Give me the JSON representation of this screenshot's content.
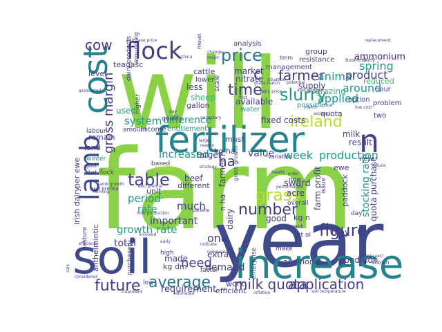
{
  "palette": {
    "green": "#8ad147",
    "lime": "#b5de2b",
    "teal": "#1f988b",
    "deep_teal": "#25838e",
    "blue": "#3e4a89",
    "navy": "#433e85",
    "purple": "#482475",
    "mint": "#35b779",
    "light_mint": "#6ece58",
    "slate": "#2c728e"
  },
  "words": [
    {
      "text": "will",
      "color": "green"
    },
    {
      "text": "farm",
      "color": "green"
    },
    {
      "text": "year",
      "color": "blue"
    },
    {
      "text": "soil",
      "color": "blue"
    },
    {
      "text": "increase",
      "color": "deep_teal"
    },
    {
      "text": "fertilizer",
      "color": "deep_teal"
    },
    {
      "text": "cost",
      "color": "deep_teal"
    },
    {
      "text": "lamb",
      "color": "blue"
    },
    {
      "text": "flock",
      "color": "navy"
    },
    {
      "text": "price",
      "color": "slate"
    },
    {
      "text": "n",
      "color": "navy"
    },
    {
      "text": "average",
      "color": "slate"
    },
    {
      "text": "future",
      "color": "navy"
    },
    {
      "text": "figure",
      "color": "navy"
    },
    {
      "text": "milk quota",
      "color": "navy"
    },
    {
      "text": "application",
      "color": "navy"
    },
    {
      "text": "ireland",
      "color": "lime"
    },
    {
      "text": "grass",
      "color": "lime"
    },
    {
      "text": "slurry",
      "color": "teal"
    },
    {
      "text": "time",
      "color": "navy"
    },
    {
      "text": "farmer",
      "color": "navy"
    },
    {
      "text": "number",
      "color": "navy"
    },
    {
      "text": "table",
      "color": "navy"
    },
    {
      "text": "gross margin",
      "color": "navy"
    },
    {
      "text": "cow",
      "color": "navy"
    },
    {
      "text": "ha",
      "color": "navy"
    },
    {
      "text": "c",
      "color": "navy"
    },
    {
      "text": "need",
      "color": "navy"
    },
    {
      "text": "demand",
      "color": "navy"
    },
    {
      "text": "week",
      "color": "teal"
    },
    {
      "text": "production",
      "color": "teal"
    },
    {
      "text": "increased",
      "color": "teal"
    },
    {
      "text": "animal",
      "color": "teal"
    },
    {
      "text": "applied",
      "color": "teal"
    },
    {
      "text": "around",
      "color": "teal"
    },
    {
      "text": "spring",
      "color": "teal"
    },
    {
      "text": "product",
      "color": "navy"
    },
    {
      "text": "value",
      "color": "navy"
    },
    {
      "text": "system",
      "color": "teal"
    },
    {
      "text": "difference",
      "color": "teal"
    },
    {
      "text": "period",
      "color": "teal"
    },
    {
      "text": "rate",
      "color": "teal"
    },
    {
      "text": "growth rate",
      "color": "teal"
    },
    {
      "text": "total",
      "color": "navy"
    },
    {
      "text": "one",
      "color": "navy"
    },
    {
      "text": "much",
      "color": "navy"
    },
    {
      "text": "important",
      "color": "navy"
    },
    {
      "text": "requirement",
      "color": "navy"
    },
    {
      "text": "ammonium",
      "color": "purple"
    },
    {
      "text": "supply",
      "color": "navy"
    },
    {
      "text": "grazing",
      "color": "mint"
    },
    {
      "text": "reduced",
      "color": "mint"
    },
    {
      "text": "market",
      "color": "navy"
    },
    {
      "text": "nitrate",
      "color": "navy"
    },
    {
      "text": "less",
      "color": "navy"
    },
    {
      "text": "cattle",
      "color": "navy"
    },
    {
      "text": "sheep",
      "color": "mint"
    },
    {
      "text": "gallon",
      "color": "navy"
    },
    {
      "text": "available",
      "color": "navy"
    },
    {
      "text": "used",
      "color": "teal"
    },
    {
      "text": "fixed costs",
      "color": "navy"
    },
    {
      "text": "quota",
      "color": "navy"
    },
    {
      "text": "milk",
      "color": "navy"
    },
    {
      "text": "result",
      "color": "navy"
    },
    {
      "text": "kg ha",
      "color": "navy"
    },
    {
      "text": "target",
      "color": "navy"
    },
    {
      "text": "must",
      "color": "navy"
    },
    {
      "text": "sward",
      "color": "navy"
    },
    {
      "text": "acre",
      "color": "navy"
    },
    {
      "text": "farm profit",
      "color": "navy"
    },
    {
      "text": "stocking rate",
      "color": "teal"
    },
    {
      "text": "quota purchase",
      "color": "navy"
    },
    {
      "text": "paddock",
      "color": "navy"
    },
    {
      "text": "good",
      "color": "navy"
    },
    {
      "text": "kg n",
      "color": "navy"
    },
    {
      "text": "may",
      "color": "navy"
    },
    {
      "text": "condition",
      "color": "navy"
    },
    {
      "text": "additional",
      "color": "navy"
    },
    {
      "text": "extra",
      "color": "navy"
    },
    {
      "text": "made",
      "color": "navy"
    },
    {
      "text": "kg dm",
      "color": "navy"
    },
    {
      "text": "work",
      "color": "navy"
    },
    {
      "text": "efficient",
      "color": "navy"
    },
    {
      "text": "dairy",
      "color": "navy"
    },
    {
      "text": "farmer n",
      "color": "navy"
    },
    {
      "text": "n ha",
      "color": "navy"
    },
    {
      "text": "beef",
      "color": "navy"
    },
    {
      "text": "different",
      "color": "navy"
    },
    {
      "text": "unit",
      "color": "navy"
    },
    {
      "text": "anthelmintic",
      "color": "navy"
    },
    {
      "text": "irish dairy",
      "color": "navy"
    },
    {
      "text": "per ewe",
      "color": "navy"
    },
    {
      "text": "land",
      "color": "navy"
    },
    {
      "text": "remain",
      "color": "navy"
    },
    {
      "text": "level",
      "color": "navy"
    },
    {
      "text": "teagasc",
      "color": "navy"
    },
    {
      "text": "income",
      "color": "navy"
    },
    {
      "text": "entitlement",
      "color": "teal"
    },
    {
      "text": "group",
      "color": "navy"
    },
    {
      "text": "resistance",
      "color": "navy"
    },
    {
      "text": "management",
      "color": "navy"
    },
    {
      "text": "analysis",
      "color": "navy"
    },
    {
      "text": "possible",
      "color": "teal"
    },
    {
      "text": "problem",
      "color": "navy"
    },
    {
      "text": "hour",
      "color": "navy"
    },
    {
      "text": "option",
      "color": "navy"
    },
    {
      "text": "two",
      "color": "navy"
    },
    {
      "text": "new",
      "color": "navy"
    },
    {
      "text": "ewe",
      "color": "navy"
    },
    {
      "text": "dairy products",
      "color": "navy"
    },
    {
      "text": "around kg",
      "color": "navy"
    },
    {
      "text": "higher",
      "color": "navy"
    },
    {
      "text": "quality",
      "color": "navy"
    },
    {
      "text": "amount",
      "color": "navy"
    },
    {
      "text": "labour",
      "color": "navy"
    },
    {
      "text": "lower",
      "color": "navy"
    },
    {
      "text": "scale",
      "color": "navy"
    },
    {
      "text": "water",
      "color": "teal"
    },
    {
      "text": "winter",
      "color": "teal"
    },
    {
      "text": "tet flock",
      "color": "navy"
    },
    {
      "text": "month",
      "color": "lime"
    },
    {
      "text": "based",
      "color": "navy"
    },
    {
      "text": "enterprise",
      "color": "navy"
    },
    {
      "text": "high",
      "color": "navy"
    },
    {
      "text": "factor",
      "color": "navy"
    },
    {
      "text": "current",
      "color": "navy"
    },
    {
      "text": "shown",
      "color": "navy"
    },
    {
      "text": "day",
      "color": "navy"
    },
    {
      "text": "make",
      "color": "navy"
    },
    {
      "text": "issue",
      "color": "navy"
    },
    {
      "text": "now",
      "color": "navy"
    },
    {
      "text": "overall",
      "color": "navy"
    },
    {
      "text": "pasture",
      "color": "navy"
    },
    {
      "text": "purchased",
      "color": "navy"
    },
    {
      "text": "low",
      "color": "navy"
    },
    {
      "text": "grass growth",
      "color": "navy"
    },
    {
      "text": "lamb growth",
      "color": "navy"
    },
    {
      "text": "business",
      "color": "navy"
    },
    {
      "text": "likely",
      "color": "navy"
    },
    {
      "text": "mean",
      "color": "navy"
    },
    {
      "text": "average cost",
      "color": "navy"
    },
    {
      "text": "low cost",
      "color": "navy"
    },
    {
      "text": "march",
      "color": "navy"
    },
    {
      "text": "due",
      "color": "navy"
    },
    {
      "text": "variation",
      "color": "navy"
    },
    {
      "text": "excl premia",
      "color": "navy"
    },
    {
      "text": "milk production",
      "color": "navy"
    },
    {
      "text": "purchase price",
      "color": "navy"
    },
    {
      "text": "replacement",
      "color": "navy"
    },
    {
      "text": "soil temperature",
      "color": "navy"
    },
    {
      "text": "inflation",
      "color": "navy"
    },
    {
      "text": "treatment",
      "color": "navy"
    },
    {
      "text": "estimated",
      "color": "navy"
    },
    {
      "text": "efficiency",
      "color": "navy"
    },
    {
      "text": "compared",
      "color": "navy"
    },
    {
      "text": "involved",
      "color": "navy"
    },
    {
      "text": "performance",
      "color": "navy"
    },
    {
      "text": "parasite",
      "color": "navy"
    },
    {
      "text": "potential",
      "color": "navy"
    },
    {
      "text": "necessary",
      "color": "navy"
    },
    {
      "text": "account",
      "color": "navy"
    },
    {
      "text": "large",
      "color": "navy"
    },
    {
      "text": "reason",
      "color": "navy"
    },
    {
      "text": "strategy",
      "color": "navy"
    },
    {
      "text": "given",
      "color": "navy"
    },
    {
      "text": "farming",
      "color": "navy"
    },
    {
      "text": "early",
      "color": "navy"
    },
    {
      "text": "dairy price",
      "color": "navy"
    },
    {
      "text": "health",
      "color": "navy"
    },
    {
      "text": "order",
      "color": "navy"
    },
    {
      "text": "reduce",
      "color": "navy"
    },
    {
      "text": "associated",
      "color": "navy"
    },
    {
      "text": "situation",
      "color": "navy"
    },
    {
      "text": "china",
      "color": "navy"
    },
    {
      "text": "major",
      "color": "navy"
    },
    {
      "text": "change",
      "color": "navy"
    },
    {
      "text": "pay",
      "color": "navy"
    },
    {
      "text": "grass match",
      "color": "navy"
    },
    {
      "text": "first",
      "color": "navy"
    },
    {
      "text": "excl premia",
      "color": "navy"
    },
    {
      "text": "considered",
      "color": "navy"
    },
    {
      "text": "indicate",
      "color": "navy"
    },
    {
      "text": "et al",
      "color": "navy"
    },
    {
      "text": "sale",
      "color": "navy"
    },
    {
      "text": "term",
      "color": "navy"
    },
    {
      "text": "margin excl",
      "color": "navy"
    }
  ]
}
